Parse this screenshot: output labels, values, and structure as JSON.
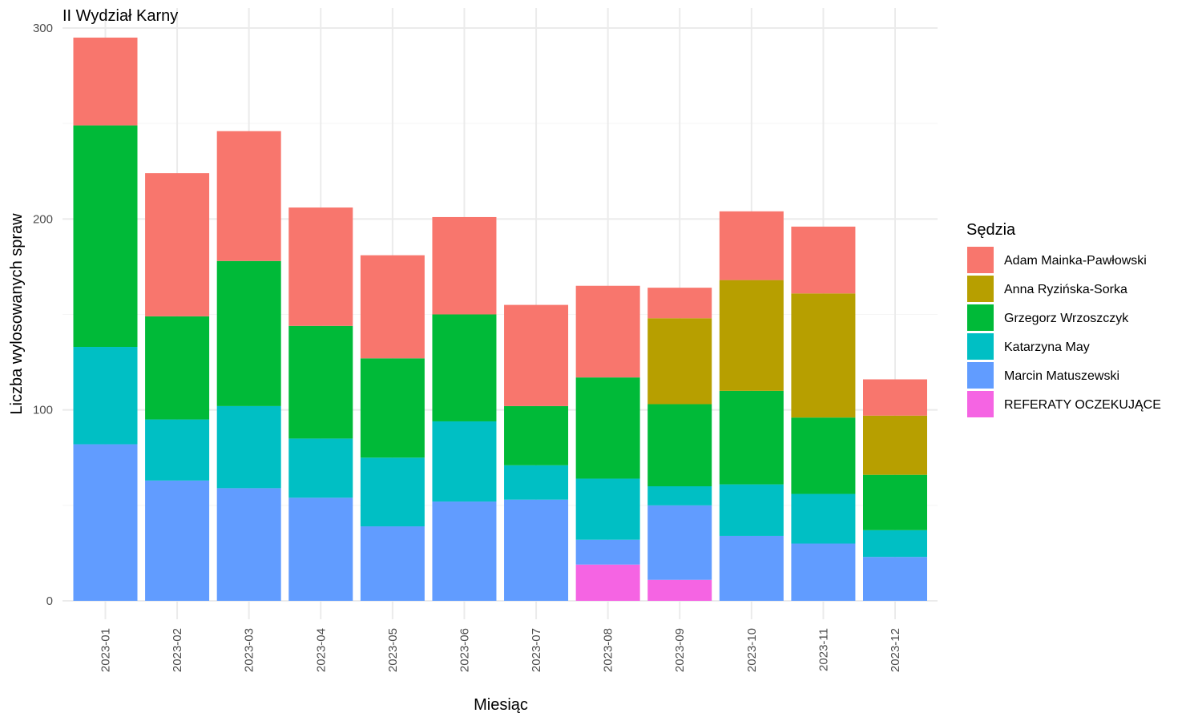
{
  "chart_data": {
    "type": "bar",
    "stacked": true,
    "title": "II Wydział Karny",
    "xlabel": "Miesiąc",
    "ylabel": "Liczba wylosowanych spraw",
    "ylim": [
      0,
      300
    ],
    "yticks": [
      0,
      100,
      200,
      300
    ],
    "grid": true,
    "legend_title": "Sędzia",
    "legend_position": "right",
    "categories": [
      "2023-01",
      "2023-02",
      "2023-03",
      "2023-04",
      "2023-05",
      "2023-06",
      "2023-07",
      "2023-08",
      "2023-09",
      "2023-10",
      "2023-11",
      "2023-12"
    ],
    "series": [
      {
        "name": "REFERATY OCZEKUJĄCE",
        "color": "#F564E3",
        "values": [
          0,
          0,
          0,
          0,
          0,
          0,
          0,
          19,
          11,
          0,
          0,
          0
        ]
      },
      {
        "name": "Marcin Matuszewski",
        "color": "#619CFF",
        "values": [
          82,
          63,
          59,
          54,
          39,
          52,
          53,
          13,
          39,
          34,
          30,
          23
        ]
      },
      {
        "name": "Katarzyna May",
        "color": "#00BFC4",
        "values": [
          51,
          32,
          43,
          31,
          36,
          42,
          18,
          32,
          10,
          27,
          26,
          14
        ]
      },
      {
        "name": "Grzegorz Wrzoszczyk",
        "color": "#00BA38",
        "values": [
          116,
          54,
          76,
          59,
          52,
          56,
          31,
          53,
          43,
          49,
          40,
          29
        ]
      },
      {
        "name": "Anna Ryzińska-Sorka",
        "color": "#B79F00",
        "values": [
          0,
          0,
          0,
          0,
          0,
          0,
          0,
          0,
          45,
          58,
          65,
          31
        ]
      },
      {
        "name": "Adam Mainka-Pawłowski",
        "color": "#F8766D",
        "values": [
          46,
          75,
          68,
          62,
          54,
          51,
          53,
          48,
          16,
          36,
          35,
          19
        ]
      }
    ],
    "legend_order": [
      "Adam Mainka-Pawłowski",
      "Anna Ryzińska-Sorka",
      "Grzegorz Wrzoszczyk",
      "Katarzyna May",
      "Marcin Matuszewski",
      "REFERATY OCZEKUJĄCE"
    ]
  }
}
